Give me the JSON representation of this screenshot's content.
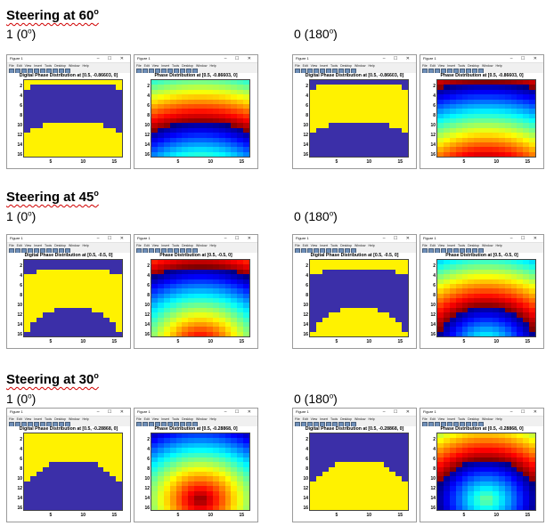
{
  "doc": {
    "sections": [
      {
        "heading": {
          "text": "Steering at 60",
          "sup": "o"
        },
        "labels": [
          {
            "text": "1 (0",
            "sup": "o",
            "tail": ")"
          },
          {
            "text": "0 (180",
            "sup": "o",
            "tail": ")"
          }
        ],
        "target": [
          0.5,
          -0.86603,
          0
        ],
        "figures": [
          {
            "digital_title": "Digital Phase Distribution at [0.5, -0.86603, 0]",
            "phase_title": "Phase Distribution at [0.5, -0.86603, 0]"
          },
          {
            "digital_title": "Digital Phase Distribution at [0.5, -0.86603, 0]",
            "phase_title": "Phase Distribution at [0.5, -0.86603, 0]"
          }
        ]
      },
      {
        "heading": {
          "text": "Steering at 45",
          "sup": "o"
        },
        "labels": [
          {
            "text": "1 (0",
            "sup": "o",
            "tail": ")"
          },
          {
            "text": "0 (180",
            "sup": "o",
            "tail": ")"
          }
        ],
        "target": [
          0.5,
          -0.5,
          0
        ],
        "figures": [
          {
            "digital_title": "Digital Phase Distribution at [0.5, -0.5, 0]",
            "phase_title": "Phase Distribution at [0.5, -0.5, 0]"
          },
          {
            "digital_title": "Digital Phase Distribution at [0.5, -0.5, 0]",
            "phase_title": "Phase Distribution at [0.5, -0.5, 0]"
          }
        ]
      },
      {
        "heading": {
          "text": "Steering at 30",
          "sup": "o"
        },
        "labels": [
          {
            "text": "1 (0",
            "sup": "o",
            "tail": ")"
          },
          {
            "text": "0 (180",
            "sup": "o",
            "tail": ")"
          }
        ],
        "target": [
          0.5,
          -0.28868,
          0
        ],
        "figures": [
          {
            "digital_title": "Digital Phase Distribution at [0.5, -0.28868, 0]",
            "phase_title": "Phase Distribution at [0.5, -0.28868, 0]"
          },
          {
            "digital_title": "Digital Phase Distribution at [0.5, -0.28868, 0]",
            "phase_title": "Phase Distribution at [0.5, -0.28868, 0]"
          }
        ]
      }
    ]
  },
  "window": {
    "title": "Figure 1",
    "menu": [
      "File",
      "Edit",
      "View",
      "Insert",
      "Tools",
      "Desktop",
      "Window",
      "Help"
    ],
    "controls": "– ☐ ✕"
  },
  "axes": {
    "y_ticks": [
      "2",
      "4",
      "6",
      "8",
      "10",
      "12",
      "14",
      "16"
    ],
    "x_ticks": [
      "5",
      "10",
      "15"
    ],
    "grid_size": 16
  },
  "colors": {
    "digital_one": "#fff200",
    "digital_zero": "#3b2fa8",
    "colormap": "jet"
  }
}
